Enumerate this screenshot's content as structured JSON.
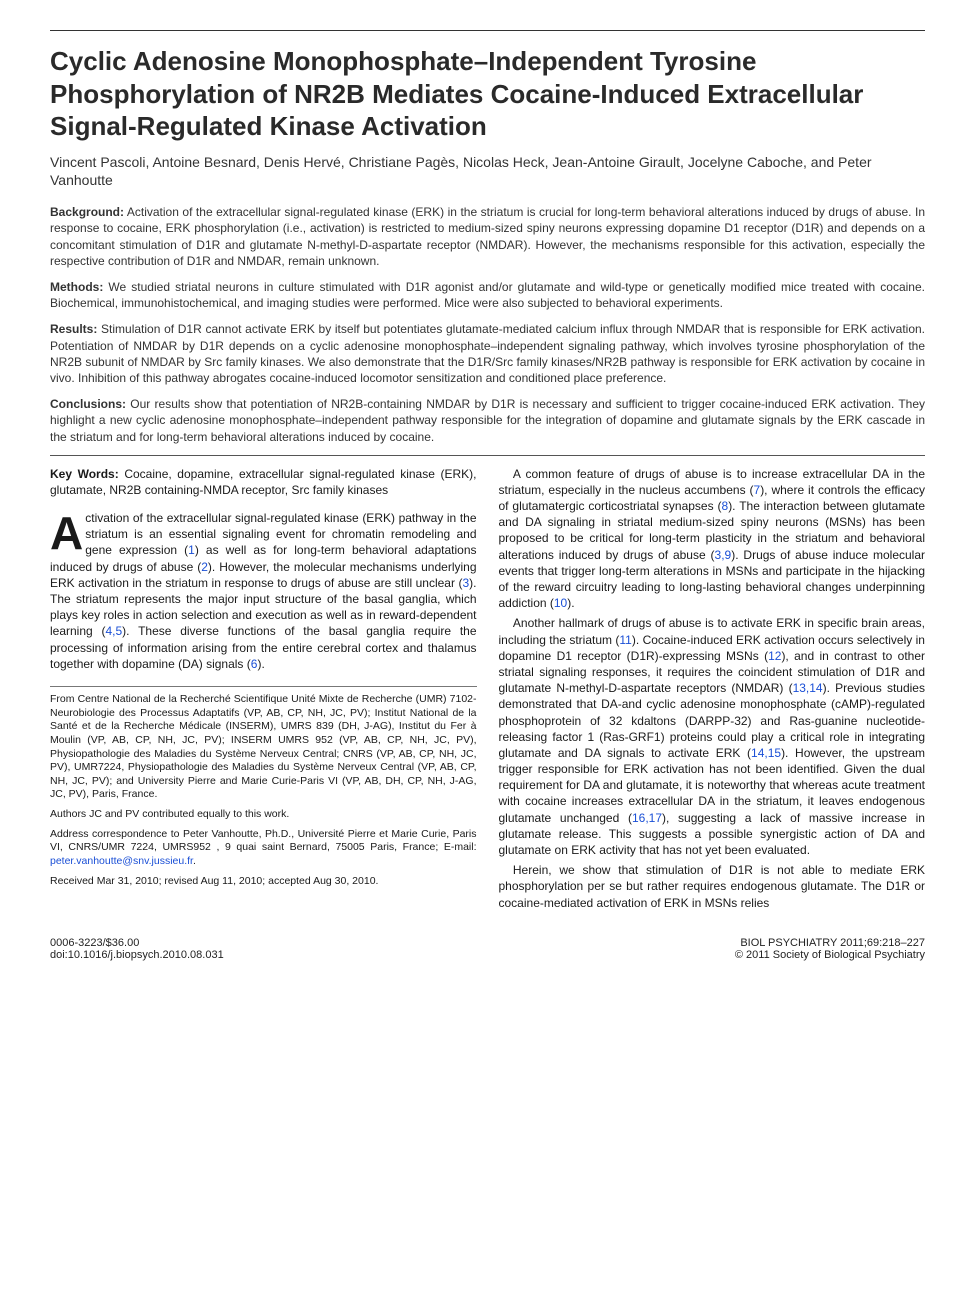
{
  "title": "Cyclic Adenosine Monophosphate–Independent Tyrosine Phosphorylation of NR2B Mediates Cocaine-Induced Extracellular Signal-Regulated Kinase Activation",
  "authors": "Vincent Pascoli, Antoine Besnard, Denis Hervé, Christiane Pagès, Nicolas Heck, Jean-Antoine Girault, Jocelyne Caboche, and Peter Vanhoutte",
  "abstract": {
    "background": {
      "label": "Background:",
      "text": "Activation of the extracellular signal-regulated kinase (ERK) in the striatum is crucial for long-term behavioral alterations induced by drugs of abuse. In response to cocaine, ERK phosphorylation (i.e., activation) is restricted to medium-sized spiny neurons expressing dopamine D1 receptor (D1R) and depends on a concomitant stimulation of D1R and glutamate N-methyl-D-aspartate receptor (NMDAR). However, the mechanisms responsible for this activation, especially the respective contribution of D1R and NMDAR, remain unknown."
    },
    "methods": {
      "label": "Methods:",
      "text": "We studied striatal neurons in culture stimulated with D1R agonist and/or glutamate and wild-type or genetically modified mice treated with cocaine. Biochemical, immunohistochemical, and imaging studies were performed. Mice were also subjected to behavioral experiments."
    },
    "results": {
      "label": "Results:",
      "text": "Stimulation of D1R cannot activate ERK by itself but potentiates glutamate-mediated calcium influx through NMDAR that is responsible for ERK activation. Potentiation of NMDAR by D1R depends on a cyclic adenosine monophosphate–independent signaling pathway, which involves tyrosine phosphorylation of the NR2B subunit of NMDAR by Src family kinases. We also demonstrate that the D1R/Src family kinases/NR2B pathway is responsible for ERK activation by cocaine in vivo. Inhibition of this pathway abrogates cocaine-induced locomotor sensitization and conditioned place preference."
    },
    "conclusions": {
      "label": "Conclusions:",
      "text": "Our results show that potentiation of NR2B-containing NMDAR by D1R is necessary and sufficient to trigger cocaine-induced ERK activation. They highlight a new cyclic adenosine monophosphate–independent pathway responsible for the integration of dopamine and glutamate signals by the ERK cascade in the striatum and for long-term behavioral alterations induced by cocaine."
    }
  },
  "keywords": {
    "label": "Key Words:",
    "text": "Cocaine, dopamine, extracellular signal-regulated kinase (ERK), glutamate, NR2B containing-NMDA receptor, Src family kinases"
  },
  "body": {
    "p1a": "Activation of the extracellular signal-regulated kinase (ERK) pathway in the striatum is an essential signaling event for chromatin remodeling and gene expression (",
    "c1": "1",
    "p1b": ") as well as for long-term behavioral adaptations induced by drugs of abuse (",
    "c2": "2",
    "p1c": "). However, the molecular mechanisms underlying ERK activation in the striatum in response to drugs of abuse are still unclear (",
    "c3": "3",
    "p1d": "). The striatum represents the major input structure of the basal ganglia, which plays key roles in action selection and execution as well as in reward-dependent learning (",
    "c45": "4,5",
    "p1e": "). These diverse functions of the basal ganglia require the processing of information arising from the entire cerebral cortex and thalamus together with dopamine (DA) signals (",
    "c6": "6",
    "p1f": ").",
    "p2a": "A common feature of drugs of abuse is to increase extracellular DA in the striatum, especially in the nucleus accumbens (",
    "c7": "7",
    "p2b": "), where it controls the efficacy of glutamatergic corticostriatal synapses (",
    "c8": "8",
    "p2c": "). The interaction between glutamate and DA signaling in striatal medium-sized spiny neurons (MSNs) has been proposed to be critical for long-term plasticity in the striatum and behavioral alterations induced by drugs of abuse (",
    "c39": "3,9",
    "p2d": "). Drugs of abuse induce molecular events that trigger long-term alterations in MSNs and participate in the hijacking of the reward circuitry leading to long-lasting behavioral changes underpinning addiction (",
    "c10": "10",
    "p2e": ").",
    "p3a": "Another hallmark of drugs of abuse is to activate ERK in specific brain areas, including the striatum (",
    "c11": "11",
    "p3b": "). Cocaine-induced ERK activation occurs selectively in dopamine D1 receptor (D1R)-expressing MSNs (",
    "c12": "12",
    "p3c": "), and in contrast to other striatal signaling responses, it requires the coincident stimulation of D1R and glutamate N-methyl-D-aspartate receptors (NMDAR) (",
    "c1314": "13,14",
    "p3d": "). Previous studies demonstrated that DA-and cyclic adenosine monophosphate (cAMP)-regulated phosphoprotein of 32 kdaltons (DARPP-32) and Ras-guanine nucleotide-releasing factor 1 (Ras-GRF1) proteins could play a critical role in integrating glutamate and DA signals to activate ERK (",
    "c1415": "14,15",
    "p3e": "). However, the upstream trigger responsible for ERK activation has not been identified. Given the dual requirement for DA and glutamate, it is noteworthy that whereas acute treatment with cocaine increases extracellular DA in the striatum, it leaves endogenous glutamate unchanged (",
    "c1617": "16,17",
    "p3f": "), suggesting a lack of massive increase in glutamate release. This suggests a possible synergistic action of DA and glutamate on ERK activity that has not yet been evaluated.",
    "p4": "Herein, we show that stimulation of D1R is not able to mediate ERK phosphorylation per se but rather requires endogenous glutamate. The D1R or cocaine-mediated activation of ERK in MSNs relies"
  },
  "affil": {
    "from": "From Centre National de la Recherché Scientifique Unité Mixte de Recherche (UMR) 7102-Neurobiologie des Processus Adaptatifs (VP, AB, CP, NH, JC, PV); Institut National de la Santé et de la Recherche Médicale (INSERM), UMRS 839 (DH, J-AG), Institut du Fer à Moulin (VP, AB, CP, NH, JC, PV); INSERM UMRS 952 (VP, AB, CP, NH, JC, PV), Physiopathologie des Maladies du Système Nerveux Central; CNRS (VP, AB, CP, NH, JC, PV), UMR7224, Physiopathologie des Maladies du Système Nerveux Central (VP, AB, CP, NH, JC, PV); and University Pierre and Marie Curie-Paris VI (VP, AB, DH, CP, NH, J-AG, JC, PV), Paris, France.",
    "equal": "Authors JC and PV contributed equally to this work.",
    "corr_pre": "Address correspondence to Peter Vanhoutte, Ph.D., Université Pierre et Marie Curie, Paris VI, CNRS/UMR 7224, UMRS952 , 9 quai saint Bernard, 75005 Paris, France; E-mail: ",
    "email": "peter.vanhoutte@snv.jussieu.fr",
    "dates": "Received Mar 31, 2010; revised Aug 11, 2010; accepted Aug 30, 2010."
  },
  "footer": {
    "left1": "0006-3223/$36.00",
    "left2": "doi:10.1016/j.biopsych.2010.08.031",
    "right1": "BIOL PSYCHIATRY 2011;69:218–227",
    "right2": "© 2011 Society of Biological Psychiatry"
  }
}
